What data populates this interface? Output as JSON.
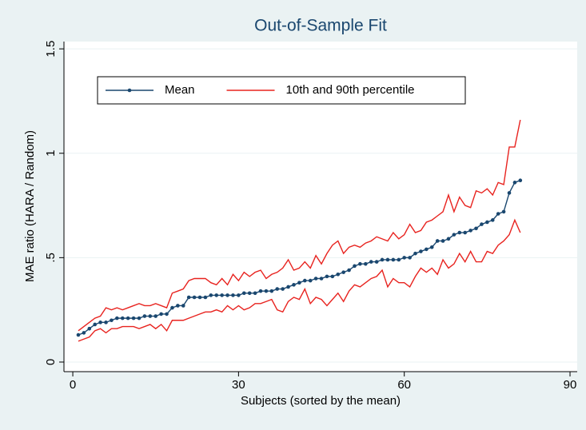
{
  "chart_data": {
    "type": "line",
    "title": "Out-of-Sample Fit",
    "x_label": "Subjects (sorted by the mean)",
    "y_label": "MAE ratio (HARA / Random)",
    "x": [
      1,
      2,
      3,
      4,
      5,
      6,
      7,
      8,
      9,
      10,
      11,
      12,
      13,
      14,
      15,
      16,
      17,
      18,
      19,
      20,
      21,
      22,
      23,
      24,
      25,
      26,
      27,
      28,
      29,
      30,
      31,
      32,
      33,
      34,
      35,
      36,
      37,
      38,
      39,
      40,
      41,
      42,
      43,
      44,
      45,
      46,
      47,
      48,
      49,
      50,
      51,
      52,
      53,
      54,
      55,
      56,
      57,
      58,
      59,
      60,
      61,
      62,
      63,
      64,
      65,
      66,
      67,
      68,
      69,
      70,
      71,
      72,
      73,
      74,
      75,
      76,
      77,
      78,
      79,
      80,
      81
    ],
    "series": [
      {
        "name": "Mean",
        "color": "#1a476f",
        "markers": true,
        "values": [
          0.13,
          0.14,
          0.16,
          0.18,
          0.19,
          0.19,
          0.2,
          0.21,
          0.21,
          0.21,
          0.21,
          0.21,
          0.22,
          0.22,
          0.22,
          0.23,
          0.23,
          0.26,
          0.27,
          0.27,
          0.31,
          0.31,
          0.31,
          0.31,
          0.32,
          0.32,
          0.32,
          0.32,
          0.32,
          0.32,
          0.33,
          0.33,
          0.33,
          0.34,
          0.34,
          0.34,
          0.35,
          0.35,
          0.36,
          0.37,
          0.38,
          0.39,
          0.39,
          0.4,
          0.4,
          0.41,
          0.41,
          0.42,
          0.43,
          0.44,
          0.46,
          0.47,
          0.47,
          0.48,
          0.48,
          0.49,
          0.49,
          0.49,
          0.49,
          0.5,
          0.5,
          0.52,
          0.53,
          0.54,
          0.55,
          0.58,
          0.58,
          0.59,
          0.61,
          0.62,
          0.62,
          0.63,
          0.64,
          0.66,
          0.67,
          0.68,
          0.71,
          0.72,
          0.81,
          0.86,
          0.87
        ]
      },
      {
        "name": "10th and 90th percentile",
        "color": "#e8231f",
        "markers": false,
        "values": [
          0.15,
          0.17,
          0.19,
          0.21,
          0.22,
          0.26,
          0.25,
          0.26,
          0.25,
          0.26,
          0.27,
          0.28,
          0.27,
          0.27,
          0.28,
          0.27,
          0.26,
          0.33,
          0.34,
          0.35,
          0.39,
          0.4,
          0.4,
          0.4,
          0.38,
          0.37,
          0.4,
          0.37,
          0.42,
          0.39,
          0.43,
          0.41,
          0.43,
          0.44,
          0.4,
          0.42,
          0.43,
          0.45,
          0.49,
          0.44,
          0.45,
          0.48,
          0.45,
          0.51,
          0.47,
          0.52,
          0.56,
          0.58,
          0.52,
          0.55,
          0.56,
          0.55,
          0.57,
          0.58,
          0.6,
          0.59,
          0.58,
          0.62,
          0.59,
          0.61,
          0.66,
          0.62,
          0.63,
          0.67,
          0.68,
          0.7,
          0.72,
          0.8,
          0.72,
          0.79,
          0.75,
          0.74,
          0.82,
          0.81,
          0.83,
          0.8,
          0.86,
          0.85,
          1.03,
          1.03,
          1.16
        ]
      },
      {
        "color": "#e8231f",
        "markers": false,
        "values": [
          0.1,
          0.11,
          0.12,
          0.15,
          0.16,
          0.14,
          0.16,
          0.16,
          0.17,
          0.17,
          0.17,
          0.16,
          0.17,
          0.18,
          0.16,
          0.18,
          0.15,
          0.2,
          0.2,
          0.2,
          0.21,
          0.22,
          0.23,
          0.24,
          0.24,
          0.25,
          0.24,
          0.27,
          0.25,
          0.27,
          0.25,
          0.26,
          0.28,
          0.28,
          0.29,
          0.3,
          0.25,
          0.24,
          0.29,
          0.31,
          0.3,
          0.35,
          0.28,
          0.31,
          0.3,
          0.27,
          0.3,
          0.33,
          0.29,
          0.34,
          0.37,
          0.36,
          0.38,
          0.4,
          0.41,
          0.44,
          0.36,
          0.4,
          0.38,
          0.38,
          0.36,
          0.41,
          0.45,
          0.43,
          0.45,
          0.42,
          0.49,
          0.45,
          0.47,
          0.52,
          0.48,
          0.53,
          0.48,
          0.48,
          0.53,
          0.52,
          0.56,
          0.58,
          0.61,
          0.68,
          0.62
        ]
      }
    ],
    "xlim": [
      -1.6,
      91.3
    ],
    "xticks": [
      0,
      30,
      60,
      90
    ],
    "ylim": [
      -0.046,
      1.535
    ],
    "yticks": [
      0,
      {
        "value": 0.5,
        "label": ".5"
      },
      1,
      1.5
    ],
    "grid": true,
    "legend_position": "top-left"
  }
}
